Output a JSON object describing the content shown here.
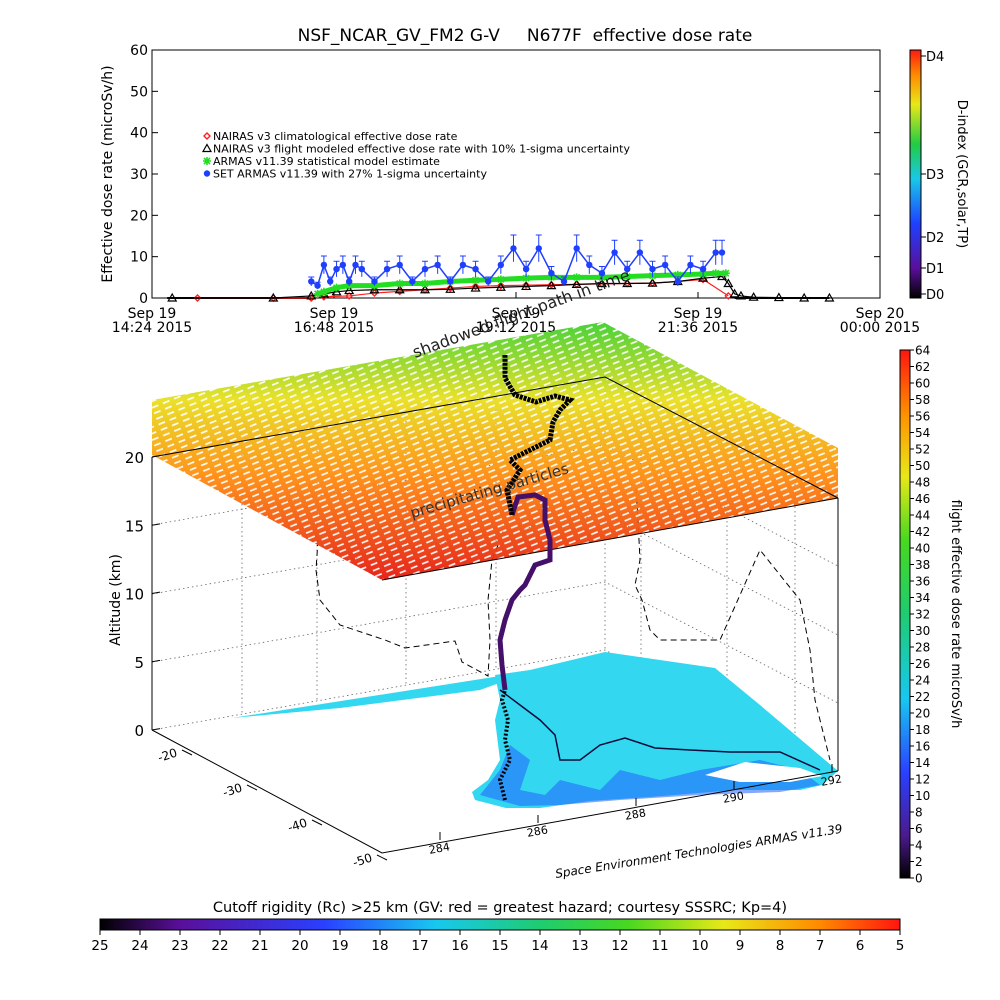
{
  "header": {
    "title": "NSF_NCAR_GV_FM2 G-V     N677F  effective dose rate"
  },
  "chart_data": [
    {
      "type": "scatter",
      "panel": "time-series",
      "title": "NSF_NCAR_GV_FM2 G-V     N677F  effective dose rate",
      "ylabel": "Effective dose rate (microSv/h)",
      "ylim": [
        0,
        60
      ],
      "yticks": [
        0,
        10,
        20,
        30,
        40,
        50,
        60
      ],
      "xlim": [
        864,
        1440
      ],
      "xticks": [
        {
          "t": 864,
          "l1": "Sep 19",
          "l2": "14:24 2015"
        },
        {
          "t": 1008,
          "l1": "Sep 19",
          "l2": "16:48 2015"
        },
        {
          "t": 1152,
          "l1": "Sep 19",
          "l2": "19:12 2015"
        },
        {
          "t": 1296,
          "l1": "Sep 19",
          "l2": "21:36 2015"
        },
        {
          "t": 1440,
          "l1": "Sep 20",
          "l2": "00:00 2015"
        }
      ],
      "legend_position": "upper-left",
      "right_axis": {
        "label": "D-index (GCR,solar,TP)",
        "ticks": [
          {
            "v": 0,
            "l": "D0"
          },
          {
            "v": 1,
            "l": "D1"
          },
          {
            "v": 2,
            "l": "D2"
          },
          {
            "v": 3,
            "l": "D3"
          },
          {
            "v": 4,
            "l": "D4"
          }
        ]
      },
      "series": [
        {
          "name": "NAIRAS v3 climatological effective dose rate",
          "color": "#ff2020",
          "marker": "diamond",
          "x": [
            900,
            960,
            990,
            1000,
            1020,
            1040,
            1060,
            1080,
            1100,
            1120,
            1140,
            1160,
            1180,
            1200,
            1220,
            1240,
            1260,
            1280,
            1300,
            1320
          ],
          "y": [
            0,
            0,
            0,
            0.3,
            0.5,
            1.2,
            1.6,
            2.0,
            2.4,
            2.8,
            3.0,
            3.1,
            3.2,
            3.3,
            3.4,
            3.5,
            3.6,
            4.0,
            4.5,
            0.5
          ]
        },
        {
          "name": "NAIRAS v3 flight modeled effective dose rate with 10% 1-sigma uncertainty",
          "color": "#000000",
          "marker": "triangle",
          "x": [
            880,
            960,
            990,
            1000,
            1010,
            1020,
            1040,
            1060,
            1080,
            1100,
            1120,
            1140,
            1160,
            1180,
            1200,
            1220,
            1240,
            1260,
            1280,
            1300,
            1315,
            1320,
            1325,
            1330,
            1340,
            1360,
            1380,
            1400
          ],
          "y": [
            0,
            0,
            0.5,
            1.0,
            1.5,
            1.8,
            2.0,
            2.0,
            2.0,
            2.1,
            2.4,
            2.6,
            2.8,
            3.0,
            3.3,
            3.5,
            3.5,
            3.6,
            4.0,
            4.8,
            5.2,
            3.5,
            1.0,
            0.5,
            0.2,
            0.1,
            0,
            0
          ]
        },
        {
          "name": "ARMAS v11.39 statistical model estimate",
          "color": "#22dd22",
          "marker": "asterisk",
          "x": [
            995,
            1000,
            1010,
            1020,
            1040,
            1060,
            1080,
            1100,
            1120,
            1140,
            1160,
            1180,
            1200,
            1220,
            1240,
            1260,
            1280,
            1300,
            1310,
            1318
          ],
          "y": [
            1.0,
            1.5,
            2.5,
            3.0,
            3.0,
            3.5,
            3.5,
            4.0,
            4.3,
            4.5,
            4.8,
            5.0,
            5.0,
            5.0,
            5.2,
            5.4,
            5.6,
            5.8,
            6.0,
            6.0
          ]
        },
        {
          "name": "SET ARMAS v11.39 with 27% 1-sigma uncertainty",
          "color": "#1f3fff",
          "marker": "circle",
          "x": [
            990,
            995,
            1000,
            1005,
            1010,
            1015,
            1020,
            1025,
            1030,
            1040,
            1050,
            1060,
            1070,
            1080,
            1090,
            1100,
            1110,
            1120,
            1130,
            1140,
            1150,
            1160,
            1170,
            1180,
            1190,
            1200,
            1210,
            1220,
            1230,
            1240,
            1250,
            1260,
            1270,
            1280,
            1290,
            1300,
            1310,
            1315
          ],
          "y": [
            4,
            3,
            8,
            4,
            7,
            8,
            4,
            8,
            7,
            4,
            7,
            8,
            4,
            7,
            8,
            4,
            8,
            7,
            4,
            8,
            12,
            7,
            12,
            6,
            4,
            12,
            8,
            6,
            11,
            7,
            11,
            7,
            8,
            4,
            8,
            7,
            11,
            11
          ]
        }
      ]
    },
    {
      "type": "area",
      "panel": "3d-altitude-map",
      "zlabel": "Altitude (km)",
      "zlim": [
        0,
        20
      ],
      "zticks": [
        0,
        5,
        10,
        15,
        20
      ],
      "lat_ticks": [
        -20,
        -30,
        -40,
        -50
      ],
      "lon_ticks": [
        284,
        286,
        288,
        290,
        292
      ],
      "annotations": [
        "shadowed flight path in time",
        "precipitating particles"
      ],
      "credit": "Space Environment Technologies ARMAS v11.39",
      "colorbar": {
        "label": "flight effective dose rate microSv/h",
        "min": 0,
        "max": 64,
        "step": 2
      },
      "flight_path": [
        {
          "lon": 287.2,
          "lat": -20,
          "alt": 0
        },
        {
          "lon": 287.2,
          "lat": -24,
          "alt": 2
        },
        {
          "lon": 287.3,
          "lat": -27,
          "alt": 5
        },
        {
          "lon": 287.4,
          "lat": -30,
          "alt": 8
        },
        {
          "lon": 287.6,
          "lat": -33,
          "alt": 10.5
        },
        {
          "lon": 287.8,
          "lat": -37,
          "alt": 12
        },
        {
          "lon": 287.9,
          "lat": -40,
          "alt": 12.5
        },
        {
          "lon": 288.0,
          "lat": -44,
          "alt": 13
        }
      ]
    },
    {
      "type": "heatmap",
      "panel": "cutoff-rigidity-bar",
      "title": "Cutoff rigidity (Rc) >25 km (GV: red = greatest hazard; courtesy SSSRC; Kp=4)",
      "ticks": [
        25,
        24,
        23,
        22,
        21,
        20,
        19,
        18,
        17,
        16,
        15,
        14,
        13,
        12,
        11,
        10,
        9,
        8,
        7,
        6,
        5
      ]
    }
  ],
  "colors": {
    "panel_bg": "#ffffff",
    "ocean": "#ffffff",
    "land": "#33d8f0",
    "land_dark": "#1e90ff",
    "flight_path": "#000000",
    "flight_path_ascent": "#44106a"
  }
}
